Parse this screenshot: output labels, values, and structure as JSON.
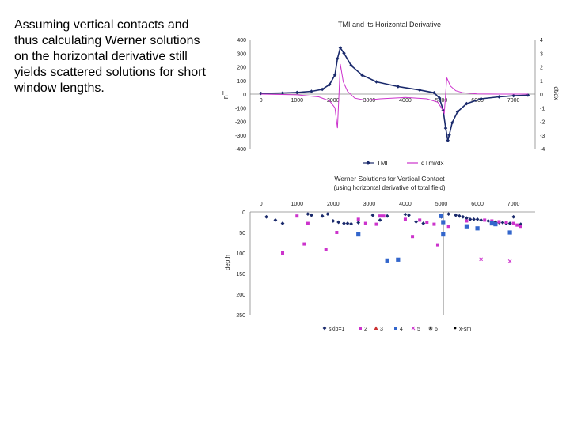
{
  "caption": "Assuming vertical contacts and thus calculating Werner solutions on the horizontal derivative still yields scattered solutions for short window lengths.",
  "chart_data": [
    {
      "type": "line",
      "title": "TMI and its Horizontal Derivative",
      "ylabel": "nT",
      "y2label": "dt/dx",
      "xlim": [
        -300,
        7600
      ],
      "xticks": [
        0,
        1000,
        2000,
        3000,
        4000,
        5000,
        6000,
        7000
      ],
      "xtick_labels": [
        "0",
        "1000",
        "2000",
        "3000",
        "4000",
        "5000",
        "6000",
        "7000"
      ],
      "ylim": [
        -400,
        400
      ],
      "yticks": [
        400,
        300,
        200,
        100,
        0,
        -100,
        -200,
        -300,
        -400
      ],
      "ytick_labels": [
        "400",
        "300",
        "200",
        "100",
        "0",
        "-100",
        "-200",
        "-300",
        "-400"
      ],
      "y2lim": [
        -4,
        4
      ],
      "y2ticks": [
        4,
        3,
        2,
        1,
        0,
        -1,
        -2,
        -3,
        -4
      ],
      "y2tick_labels": [
        "4",
        "3",
        "2",
        "1",
        "0",
        "-1",
        "-2",
        "-3",
        "-4"
      ],
      "grid": false,
      "legend_position": "bottom",
      "colors": {
        "tmi": "#1a2a6c",
        "deriv": "#cc33cc"
      },
      "series": [
        {
          "name": "TMI",
          "axis": "left",
          "x": [
            0,
            600,
            1000,
            1400,
            1700,
            1900,
            2050,
            2120,
            2200,
            2300,
            2500,
            2800,
            3200,
            3800,
            4400,
            4800,
            4950,
            5050,
            5120,
            5180,
            5220,
            5300,
            5450,
            5700,
            6100,
            6600,
            7000,
            7400
          ],
          "y": [
            5,
            8,
            12,
            20,
            35,
            70,
            140,
            260,
            340,
            300,
            210,
            140,
            90,
            55,
            30,
            10,
            -30,
            -120,
            -250,
            -340,
            -300,
            -210,
            -130,
            -70,
            -35,
            -20,
            -12,
            -8
          ]
        },
        {
          "name": "dTmi/dx",
          "axis": "right",
          "x": [
            0,
            1000,
            1600,
            1900,
            2050,
            2120,
            2200,
            2280,
            2400,
            2600,
            2900,
            3300,
            4000,
            4600,
            4900,
            5000,
            5080,
            5150,
            5250,
            5400,
            5600,
            6000,
            6600,
            7400
          ],
          "y": [
            0,
            -0.05,
            -0.2,
            -0.5,
            -1.0,
            -2.5,
            2.2,
            0.9,
            0.2,
            -0.3,
            -0.45,
            -0.35,
            -0.25,
            -0.35,
            -0.6,
            -1.0,
            -1.4,
            1.2,
            0.6,
            0.25,
            0.1,
            0.02,
            0.0,
            0.0
          ]
        }
      ]
    },
    {
      "type": "scatter",
      "title": "Werner Solutions for Vertical Contact",
      "subtitle": "(using horizontal derivative of total field)",
      "ylabel": "depth",
      "xlim": [
        -300,
        7600
      ],
      "xticks": [
        0,
        1000,
        2000,
        3000,
        4000,
        5000,
        6000,
        7000
      ],
      "xtick_labels": [
        "0",
        "1000",
        "2000",
        "3000",
        "4000",
        "5000",
        "6000",
        "7000"
      ],
      "ylim": [
        0,
        250
      ],
      "yticks": [
        0,
        50,
        100,
        150,
        200,
        250
      ],
      "ytick_labels": [
        "0",
        "50",
        "100",
        "150",
        "200",
        "250"
      ],
      "y_inverted": true,
      "grid": false,
      "legend_position": "bottom",
      "vertical_line_x": 5050,
      "series": [
        {
          "name": "skip=1",
          "marker": "diamond",
          "color": "#1a2a6c",
          "x": [
            150,
            400,
            600,
            1300,
            1400,
            1700,
            1850,
            2000,
            2150,
            2300,
            2400,
            2500,
            2700,
            3100,
            3300,
            3500,
            4000,
            4100,
            4300,
            4500,
            5000,
            5200,
            5400,
            5500,
            5600,
            5700,
            5800,
            5900,
            6000,
            6100,
            6300,
            6400,
            6500,
            6600,
            6700,
            6800,
            6900,
            7000,
            7200
          ],
          "y": [
            12,
            20,
            28,
            5,
            8,
            10,
            5,
            22,
            25,
            28,
            28,
            29,
            26,
            8,
            20,
            10,
            6,
            8,
            24,
            28,
            12,
            5,
            8,
            10,
            12,
            15,
            18,
            18,
            18,
            20,
            22,
            24,
            25,
            26,
            26,
            28,
            28,
            12,
            30
          ]
        },
        {
          "name": "2",
          "marker": "square",
          "color": "#cc33cc",
          "x": [
            1000,
            2700,
            1300,
            2900,
            3200,
            3300,
            3400,
            4400,
            4600,
            4800,
            5200,
            5700,
            6200,
            6400,
            6600,
            6800,
            7000,
            7100,
            7200,
            600
          ],
          "y": [
            10,
            18,
            28,
            28,
            30,
            10,
            10,
            20,
            25,
            30,
            35,
            22,
            20,
            22,
            24,
            25,
            28,
            32,
            35,
            100
          ],
          "x_extra": [
            1200,
            1800,
            2100,
            4000,
            4200,
            4900
          ],
          "y_extra": [
            78,
            92,
            50,
            18,
            60,
            80
          ]
        },
        {
          "name": "3",
          "marker": "triangle",
          "color": "#cc3333",
          "x": [],
          "y": []
        },
        {
          "name": "4",
          "marker": "square",
          "color": "#3366cc",
          "x": [
            3500,
            3800,
            5000,
            5050,
            5050,
            5700,
            6000,
            6400,
            6500,
            6900,
            2700
          ],
          "y": [
            118,
            116,
            10,
            25,
            55,
            35,
            40,
            28,
            30,
            50,
            55
          ]
        },
        {
          "name": "5",
          "marker": "x",
          "color": "#cc33cc",
          "x": [
            6100,
            6900
          ],
          "y": [
            115,
            120
          ]
        },
        {
          "name": "6",
          "marker": "star",
          "color": "#333333",
          "x": [],
          "y": []
        },
        {
          "name": "x-sm",
          "marker": "dot",
          "color": "#000000",
          "x": [],
          "y": []
        }
      ]
    }
  ]
}
